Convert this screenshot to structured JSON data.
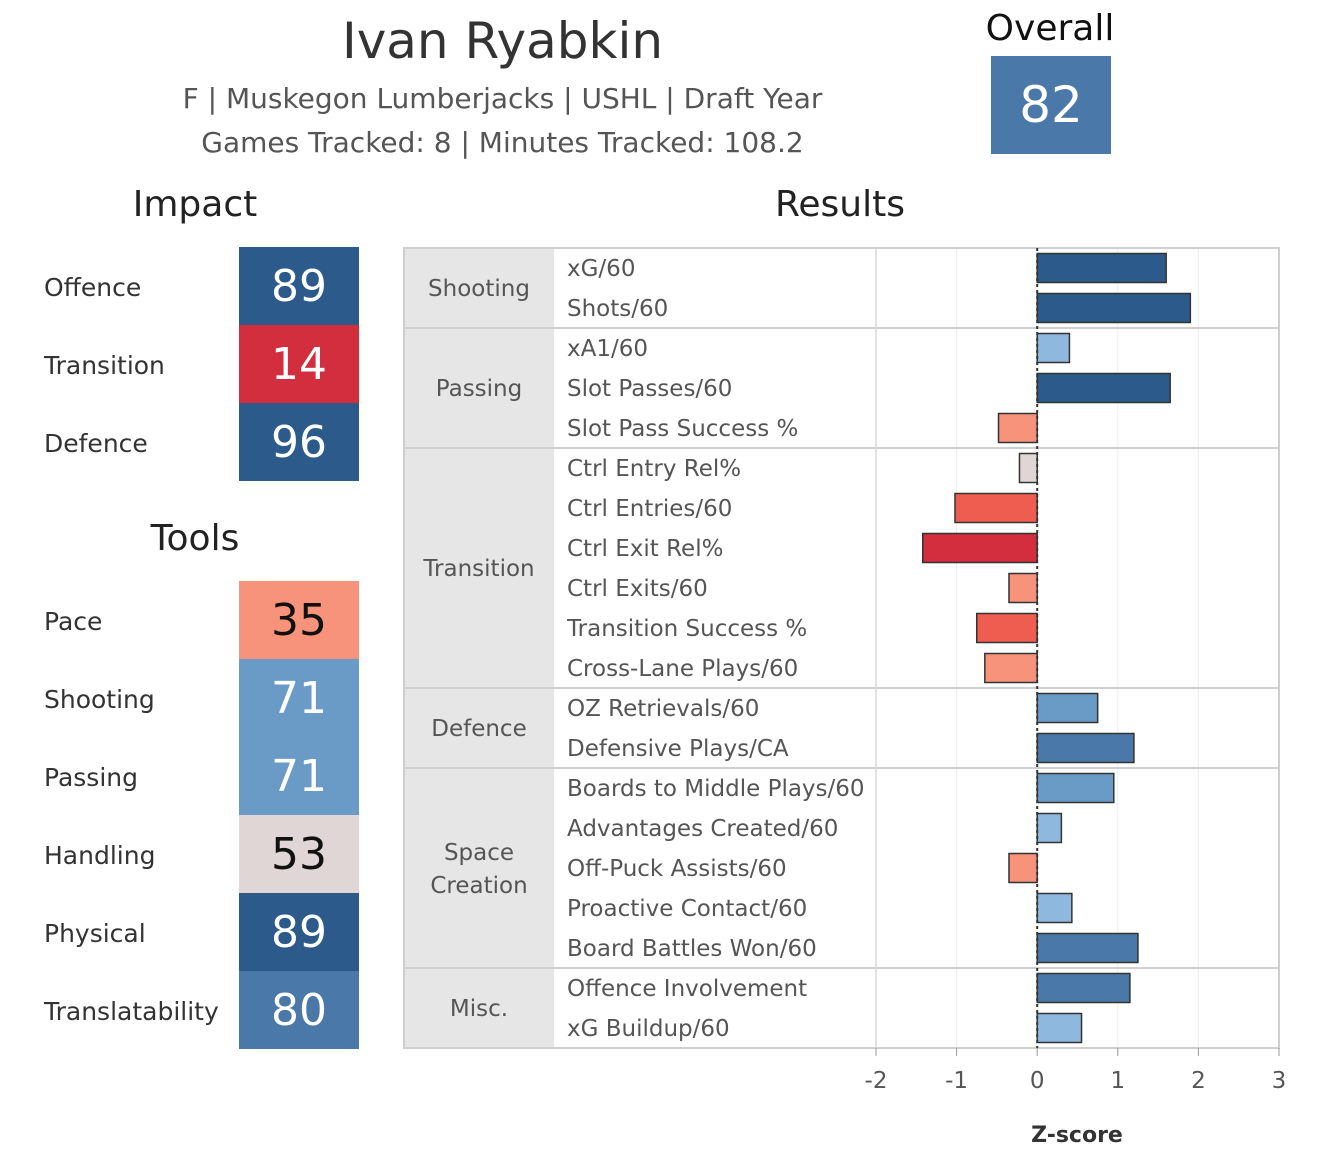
{
  "header": {
    "name": "Ivan Ryabkin",
    "subline_1": "F | Muskegon Lumberjacks | USHL | Draft Year",
    "subline_2": "Games Tracked: 8 | Minutes Tracked: 108.2"
  },
  "overall": {
    "title": "Overall",
    "value": "82",
    "color": "#4a78a8"
  },
  "impact": {
    "title": "Impact",
    "items": [
      {
        "label": "Offence",
        "value": "89",
        "color": "#2c5a8a",
        "text_color": "#ffffff"
      },
      {
        "label": "Transition",
        "value": "14",
        "color": "#d22e3e",
        "text_color": "#ffffff"
      },
      {
        "label": "Defence",
        "value": "96",
        "color": "#2c5a8a",
        "text_color": "#ffffff"
      }
    ]
  },
  "tools": {
    "title": "Tools",
    "items": [
      {
        "label": "Pace",
        "value": "35",
        "color": "#f7937a",
        "text_color": "#111111"
      },
      {
        "label": "Shooting",
        "value": "71",
        "color": "#6a9bc6",
        "text_color": "#ffffff"
      },
      {
        "label": "Passing",
        "value": "71",
        "color": "#6a9bc6",
        "text_color": "#ffffff"
      },
      {
        "label": "Handling",
        "value": "53",
        "color": "#e0d6d5",
        "text_color": "#111111"
      },
      {
        "label": "Physical",
        "value": "89",
        "color": "#2c5a8a",
        "text_color": "#ffffff"
      },
      {
        "label": "Translatability",
        "value": "80",
        "color": "#4a78a8",
        "text_color": "#ffffff"
      }
    ]
  },
  "chart_data": {
    "type": "bar",
    "orientation": "horizontal",
    "title": "Results",
    "xlabel": "Z-score",
    "xlim": [
      -2,
      3
    ],
    "x_ticks": [
      "-2",
      "-1",
      "0",
      "1",
      "2",
      "3"
    ],
    "groups": [
      {
        "name": "Shooting",
        "metrics": [
          {
            "label": "xG/60",
            "value": 1.6,
            "color": "#2c5a8a"
          },
          {
            "label": "Shots/60",
            "value": 1.9,
            "color": "#2c5a8a"
          }
        ]
      },
      {
        "name": "Passing",
        "metrics": [
          {
            "label": "xA1/60",
            "value": 0.4,
            "color": "#8fb8de"
          },
          {
            "label": "Slot Passes/60",
            "value": 1.65,
            "color": "#2c5a8a"
          },
          {
            "label": "Slot Pass Success %",
            "value": -0.48,
            "color": "#f7937a"
          }
        ]
      },
      {
        "name": "Transition",
        "metrics": [
          {
            "label": "Ctrl Entry Rel%",
            "value": -0.22,
            "color": "#e0d6d5"
          },
          {
            "label": "Ctrl Entries/60",
            "value": -1.02,
            "color": "#ef5d50"
          },
          {
            "label": "Ctrl Exit Rel%",
            "value": -1.42,
            "color": "#d22e3e"
          },
          {
            "label": "Ctrl Exits/60",
            "value": -0.35,
            "color": "#f7937a"
          },
          {
            "label": "Transition Success %",
            "value": -0.75,
            "color": "#ef5d50"
          },
          {
            "label": "Cross-Lane Plays/60",
            "value": -0.65,
            "color": "#f7937a"
          }
        ]
      },
      {
        "name": "Defence",
        "metrics": [
          {
            "label": "OZ Retrievals/60",
            "value": 0.75,
            "color": "#6a9bc6"
          },
          {
            "label": "Defensive Plays/CA",
            "value": 1.2,
            "color": "#4a78a8"
          }
        ]
      },
      {
        "name": "Space\nCreation",
        "metrics": [
          {
            "label": "Boards to Middle Plays/60",
            "value": 0.95,
            "color": "#6a9bc6"
          },
          {
            "label": "Advantages Created/60",
            "value": 0.3,
            "color": "#8fb8de"
          },
          {
            "label": "Off-Puck Assists/60",
            "value": -0.35,
            "color": "#f7937a"
          },
          {
            "label": "Proactive Contact/60",
            "value": 0.43,
            "color": "#8fb8de"
          },
          {
            "label": "Board Battles Won/60",
            "value": 1.25,
            "color": "#4a78a8"
          }
        ]
      },
      {
        "name": "Misc.",
        "metrics": [
          {
            "label": "Offence Involvement",
            "value": 1.15,
            "color": "#4a78a8"
          },
          {
            "label": "xG Buildup/60",
            "value": 0.55,
            "color": "#8fb8de"
          }
        ]
      }
    ]
  }
}
